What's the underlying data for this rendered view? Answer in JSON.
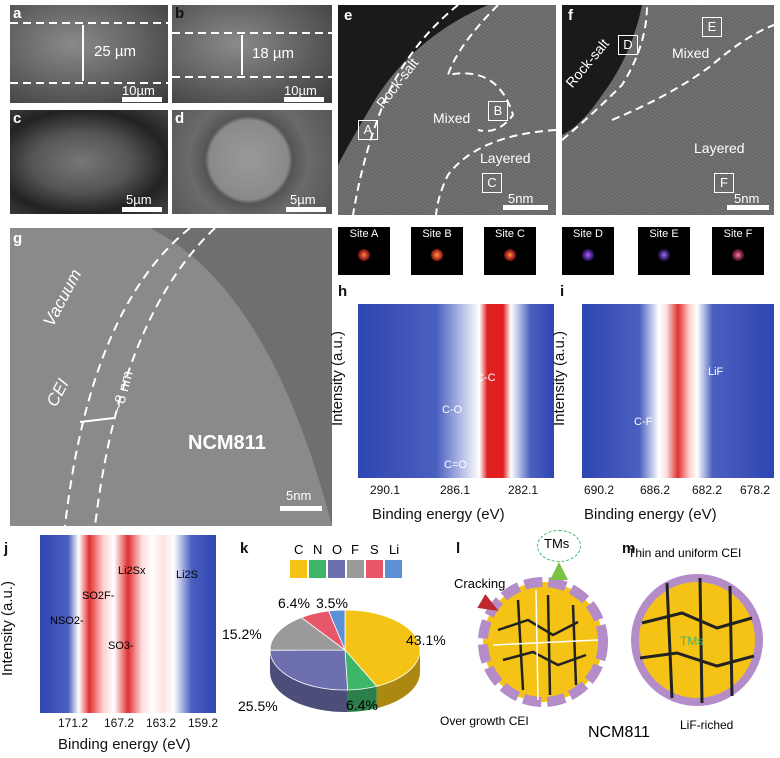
{
  "panels": {
    "a": {
      "label": "a",
      "thickness": "25 µm",
      "scale": "10µm"
    },
    "b": {
      "label": "b",
      "thickness": "18 µm",
      "scale": "10µm"
    },
    "c": {
      "label": "c",
      "scale": "5µm"
    },
    "d": {
      "label": "d",
      "scale": "5µm"
    },
    "e": {
      "label": "e",
      "rock_salt": "Rock-salt",
      "mixed": "Mixed",
      "layered": "Layered",
      "site_a": "A",
      "site_b": "B",
      "site_c": "C",
      "scale": "5nm"
    },
    "f": {
      "label": "f",
      "rock_salt": "Rock-salt",
      "mixed": "Mixed",
      "layered": "Layered",
      "site_d": "D",
      "site_e": "E",
      "site_f": "F",
      "scale": "5nm"
    },
    "fft_sites": [
      "Site A",
      "Site B",
      "Site C",
      "Site D",
      "Site E",
      "Site F"
    ],
    "g": {
      "label": "g",
      "vacuum": "Vacuum",
      "cei": "CEI",
      "thickness": "~8 nm",
      "material": "NCM811",
      "scale": "5nm"
    },
    "h": {
      "label": "h",
      "ylabel": "Intensity (a.u.)",
      "xlabel": "Binding energy (eV)",
      "ticks": [
        "290.1",
        "286.1",
        "282.1"
      ],
      "peaks": [
        "C-C",
        "C-O",
        "C=O"
      ]
    },
    "i": {
      "label": "i",
      "ylabel": "Intensity (a.u.)",
      "xlabel": "Binding energy (eV)",
      "ticks": [
        "690.2",
        "686.2",
        "682.2",
        "678.2"
      ],
      "peaks": [
        "LiF",
        "C-F"
      ]
    },
    "j": {
      "label": "j",
      "ylabel": "Intensity  (a.u.)",
      "xlabel": "Binding energy (eV)",
      "ticks": [
        "171.2",
        "167.2",
        "163.2",
        "159.2"
      ],
      "peaks": [
        "Li2Sx",
        "Li2S",
        "SO2F-",
        "NSO2-",
        "SO3-"
      ]
    },
    "k": {
      "label": "k",
      "legend": [
        "C",
        "N",
        "O",
        "F",
        "S",
        "Li"
      ],
      "percents": [
        "43.1%",
        "6.4%",
        "25.5%",
        "15.2%",
        "6.4%",
        "3.5%"
      ]
    },
    "l": {
      "label": "l",
      "tms": "TMs",
      "cracking": "Cracking",
      "overgrowth": "Over growth CEI",
      "material": "NCM811"
    },
    "m": {
      "label": "m",
      "thin": "Thin and uniform CEI",
      "tms": "TMs",
      "lif": "LiF-riched"
    }
  },
  "chart_data": {
    "type": "pie",
    "categories": [
      "C",
      "N",
      "O",
      "F",
      "S",
      "Li"
    ],
    "values": [
      43.1,
      6.4,
      25.5,
      15.2,
      6.4,
      3.5
    ],
    "colors": [
      "#f5c316",
      "#3fb56a",
      "#6d6fae",
      "#9a9a9a",
      "#e8566a",
      "#5b8fd6"
    ]
  }
}
